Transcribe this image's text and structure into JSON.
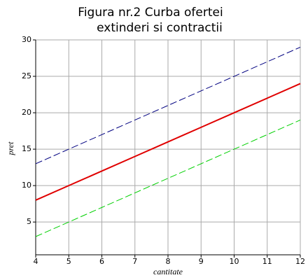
{
  "chart_data": {
    "type": "line",
    "title": [
      "Figura nr.2 Curba ofertei",
      "extinderi si contractii"
    ],
    "x_label": "cantitate",
    "y_label": "pret",
    "x": [
      4,
      5,
      6,
      7,
      8,
      9,
      10,
      11,
      12
    ],
    "series": [
      {
        "color": "#000080",
        "dashed": true,
        "values": [
          13,
          15,
          17,
          19,
          21,
          23,
          25,
          27,
          29
        ]
      },
      {
        "color": "#e00000",
        "dashed": false,
        "values": [
          8,
          10,
          12,
          14,
          16,
          18,
          20,
          22,
          24
        ]
      },
      {
        "color": "#00d000",
        "dashed": true,
        "values": [
          3,
          5,
          7,
          9,
          11,
          13,
          15,
          17,
          19
        ]
      }
    ],
    "xlim": [
      4,
      12
    ],
    "xticks": [
      4,
      5,
      6,
      7,
      8,
      9,
      10,
      11,
      12
    ],
    "ylim": [
      0.5,
      30
    ],
    "yticks": [
      5,
      10,
      15,
      20,
      25,
      30
    ],
    "grid": true
  }
}
